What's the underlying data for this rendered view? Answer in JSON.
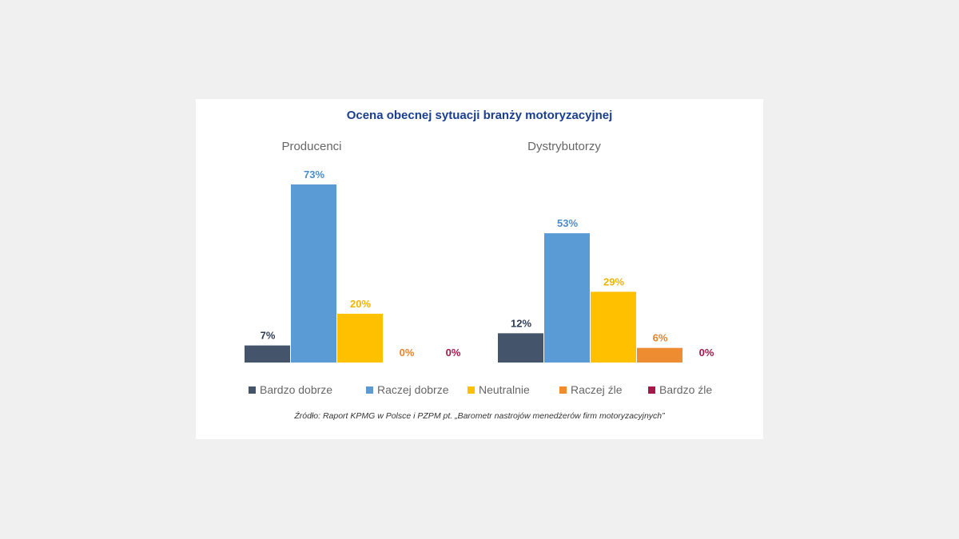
{
  "chart_data": {
    "type": "bar",
    "title": "Ocena obecnej sytuacji branży motoryzacyjnej",
    "groups": [
      "Producenci",
      "Dystrybutorzy"
    ],
    "series": [
      {
        "name": "Bardzo dobrze",
        "color": "#44546a",
        "label_color": "#2e3d55",
        "values": [
          7,
          12
        ],
        "labels": [
          "7%",
          "12%"
        ]
      },
      {
        "name": "Raczej dobrze",
        "color": "#5b9bd5",
        "label_color": "#4a8cc8",
        "values": [
          73,
          53
        ],
        "labels": [
          "73%",
          "53%"
        ]
      },
      {
        "name": "Neutralnie",
        "color": "#ffc000",
        "label_color": "#f0b400",
        "values": [
          20,
          29
        ],
        "labels": [
          "20%",
          "29%"
        ]
      },
      {
        "name": "Raczej źle",
        "color": "#ed8c31",
        "label_color": "#e8832a",
        "values": [
          0,
          6
        ],
        "labels": [
          "0%",
          "6%"
        ]
      },
      {
        "name": "Bardzo źle",
        "color": "#a6174a",
        "label_color": "#a6174a",
        "values": [
          0,
          0
        ],
        "labels": [
          "0%",
          "0%"
        ]
      }
    ],
    "ylim": [
      0,
      80
    ]
  },
  "source": "Źródło: Raport KPMG w Polsce i PZPM pt. „Barometr nastrojów menedżerów firm motoryzacyjnych”"
}
